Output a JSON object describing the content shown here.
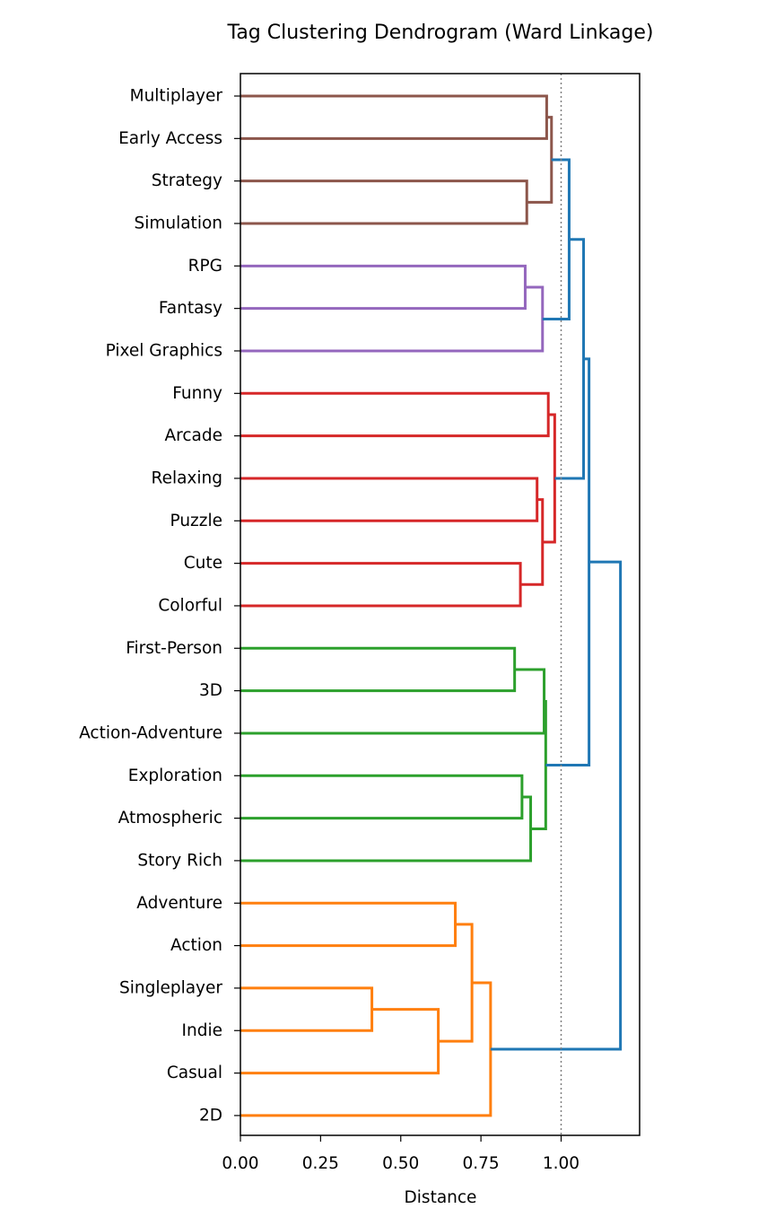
{
  "chart_data": {
    "type": "dendrogram",
    "title": "Tag Clustering Dendrogram (Ward Linkage)",
    "xlabel": "Distance",
    "ylabel": "",
    "xlim": [
      0,
      1.25
    ],
    "xticks": [
      {
        "value": 0.0,
        "label": "0.00"
      },
      {
        "value": 0.25,
        "label": "0.25"
      },
      {
        "value": 0.5,
        "label": "0.50"
      },
      {
        "value": 0.75,
        "label": "0.75"
      },
      {
        "value": 1.0,
        "label": "1.00"
      }
    ],
    "threshold": 1.0,
    "orientation": "left",
    "leaves": [
      "Multiplayer",
      "Early Access",
      "Strategy",
      "Simulation",
      "RPG",
      "Fantasy",
      "Pixel Graphics",
      "Funny",
      "Arcade",
      "Relaxing",
      "Puzzle",
      "Cute",
      "Colorful",
      "First-Person",
      "3D",
      "Action-Adventure",
      "Exploration",
      "Atmospheric",
      "Story Rich",
      "Adventure",
      "Action",
      "Singleplayer",
      "Indie",
      "Casual",
      "2D"
    ],
    "cluster_colors": {
      "above_threshold": "#1f77b4",
      "brown": "#8c564b",
      "purple": "#9467bd",
      "red": "#d62728",
      "green": "#2ca02c",
      "orange": "#ff7f0e"
    },
    "merges": [
      {
        "a": "L0",
        "b": "L1",
        "height": 0.955,
        "color": "brown"
      },
      {
        "a": "L2",
        "b": "L3",
        "height": 0.893,
        "color": "brown"
      },
      {
        "a": "M0",
        "b": "M1",
        "height": 0.97,
        "color": "brown"
      },
      {
        "a": "L4",
        "b": "L5",
        "height": 0.888,
        "color": "purple"
      },
      {
        "a": "M3",
        "b": "L6",
        "height": 0.942,
        "color": "purple"
      },
      {
        "a": "M2",
        "b": "M4",
        "height": 1.025,
        "color": "above_threshold"
      },
      {
        "a": "L7",
        "b": "L8",
        "height": 0.96,
        "color": "red"
      },
      {
        "a": "L9",
        "b": "L10",
        "height": 0.925,
        "color": "red"
      },
      {
        "a": "L11",
        "b": "L12",
        "height": 0.873,
        "color": "red"
      },
      {
        "a": "M7",
        "b": "M8",
        "height": 0.942,
        "color": "red"
      },
      {
        "a": "M6",
        "b": "M9",
        "height": 0.98,
        "color": "red"
      },
      {
        "a": "M5",
        "b": "M10",
        "height": 1.07,
        "color": "above_threshold"
      },
      {
        "a": "L13",
        "b": "L14",
        "height": 0.855,
        "color": "green"
      },
      {
        "a": "L16",
        "b": "L17",
        "height": 0.878,
        "color": "green"
      },
      {
        "a": "M13",
        "b": "L18",
        "height": 0.905,
        "color": "green"
      },
      {
        "a": "M12",
        "b": "L15",
        "height": 0.947,
        "color": "green"
      },
      {
        "a": "M15",
        "b": "M14",
        "height": 0.952,
        "color": "green"
      },
      {
        "a": "M11",
        "b": "M16",
        "height": 1.087,
        "color": "above_threshold"
      },
      {
        "a": "L19",
        "b": "L20",
        "height": 0.67,
        "color": "orange"
      },
      {
        "a": "L21",
        "b": "L22",
        "height": 0.41,
        "color": "orange"
      },
      {
        "a": "M19",
        "b": "L23",
        "height": 0.617,
        "color": "orange"
      },
      {
        "a": "M18",
        "b": "M20",
        "height": 0.722,
        "color": "orange"
      },
      {
        "a": "M21",
        "b": "L24",
        "height": 0.78,
        "color": "orange"
      },
      {
        "a": "M17",
        "b": "M22",
        "height": 1.185,
        "color": "above_threshold"
      }
    ]
  }
}
